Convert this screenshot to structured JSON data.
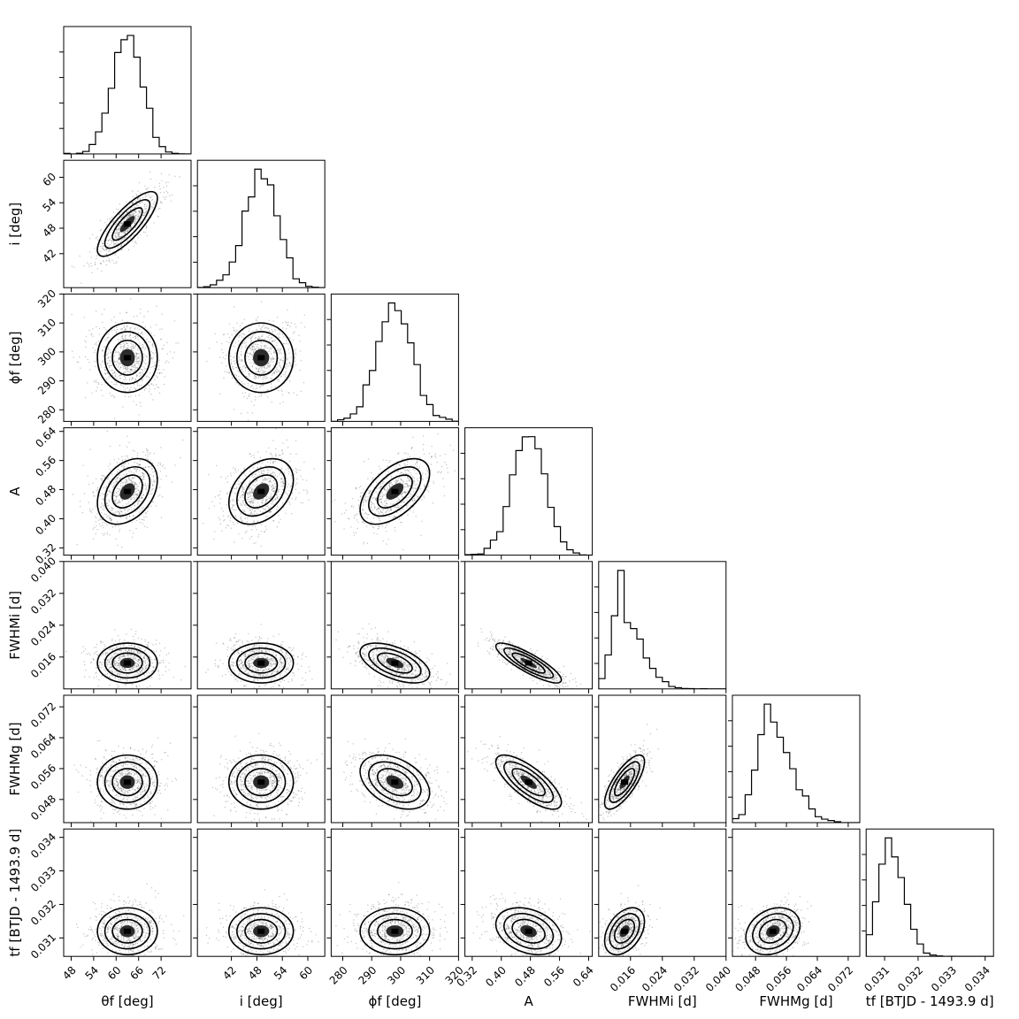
{
  "chart_data": {
    "type": "corner",
    "params": [
      {
        "key": "theta_f",
        "label": "θ_f [deg]",
        "range": [
          46,
          80
        ],
        "ticks": [
          48,
          54,
          60,
          66,
          72
        ],
        "mean": 63,
        "sd": 4
      },
      {
        "key": "i",
        "label": "i [deg]",
        "range": [
          34,
          64
        ],
        "ticks": [
          42,
          48,
          54,
          60
        ],
        "mean": 49,
        "sd": 3.8
      },
      {
        "key": "phi_f",
        "label": "φ_f [deg]",
        "range": [
          276,
          320
        ],
        "ticks": [
          280,
          290,
          300,
          310,
          320
        ],
        "mean": 298,
        "sd": 6
      },
      {
        "key": "A",
        "label": "A",
        "range": [
          0.3,
          0.65
        ],
        "ticks": [
          0.32,
          0.4,
          0.48,
          0.56,
          0.64
        ],
        "mean": 0.475,
        "sd": 0.045
      },
      {
        "key": "FWHM_i",
        "label": "FWHM_i [d]",
        "range": [
          0.008,
          0.04
        ],
        "ticks": [
          0.016,
          0.024,
          0.032,
          0.04
        ],
        "mean": 0.0145,
        "sd": 0.0025
      },
      {
        "key": "FWHM_g",
        "label": "FWHM_g [d]",
        "range": [
          0.042,
          0.075
        ],
        "ticks": [
          0.048,
          0.056,
          0.064,
          0.072
        ],
        "mean": 0.0525,
        "sd": 0.0035
      },
      {
        "key": "t_f",
        "label": "t_f [BTJD - 1493.9 d]",
        "range": [
          0.03045,
          0.03425
        ],
        "ticks": [
          0.031,
          0.032,
          0.033,
          0.034
        ],
        "mean": 0.0312,
        "sd": 0.00035
      }
    ],
    "x_tick_labels": [
      [
        "48",
        "54",
        "60",
        "66",
        "72"
      ],
      [
        "42",
        "48",
        "54",
        "60"
      ],
      [
        "280",
        "290",
        "300",
        "310",
        "320"
      ],
      [
        "0.32",
        "0.40",
        "0.48",
        "0.56",
        "0.64"
      ],
      [
        "0.016",
        "0.024",
        "0.032",
        "0.040"
      ],
      [
        "0.048",
        "0.056",
        "0.064",
        "0.072"
      ],
      [
        "0.031",
        "0.032",
        "0.033",
        "0.034"
      ]
    ],
    "y_tick_labels": [
      [],
      [
        "42",
        "48",
        "54",
        "60"
      ],
      [
        "280",
        "290",
        "300",
        "310",
        "320"
      ],
      [
        "0.32",
        "0.40",
        "0.48",
        "0.56",
        "0.64"
      ],
      [
        "0.016",
        "0.024",
        "0.032",
        "0.040"
      ],
      [
        "0.048",
        "0.056",
        "0.064",
        "0.072"
      ],
      [
        "0.031",
        "0.032",
        "0.033",
        "0.034"
      ]
    ],
    "x_axis_labels": [
      "θf [deg]",
      "i [deg]",
      "ϕf [deg]",
      "A",
      "FWHMi [d]",
      "FWHMg [d]",
      "tf [BTJD - 1493.9 d]"
    ],
    "y_axis_labels": [
      "",
      "i [deg]",
      "ϕf [deg]",
      "A",
      "FWHMi [d]",
      "FWHMg [d]",
      "tf [BTJD - 1493.9 d]"
    ],
    "correlations": [
      [
        1,
        0.8,
        0,
        0.35,
        0,
        0,
        0
      ],
      [
        0.8,
        1,
        0,
        0.35,
        0,
        0,
        0
      ],
      [
        0,
        0,
        1,
        0.55,
        -0.55,
        -0.4,
        0
      ],
      [
        0.35,
        0.35,
        0.55,
        1,
        -0.85,
        -0.75,
        -0.3
      ],
      [
        0,
        0,
        -0.55,
        -0.85,
        1,
        0.75,
        0.4
      ],
      [
        0,
        0,
        -0.4,
        -0.75,
        0.75,
        1,
        0.25
      ],
      [
        0,
        0,
        0,
        -0.3,
        0.4,
        0.25,
        1
      ]
    ],
    "levels_sigma": [
      0.5,
      1,
      1.5,
      2
    ],
    "grid": false
  }
}
